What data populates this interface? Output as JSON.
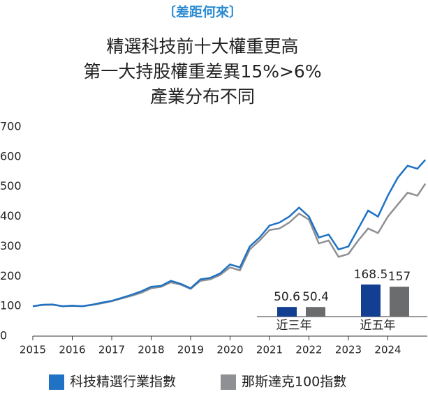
{
  "header": "〔差距何來〕",
  "chart_data": [
    {
      "type": "line",
      "title": [
        "精選科技前十大權重更高",
        "第一大持股權重差異15%>6%",
        "產業分布不同"
      ],
      "x": [
        2015,
        2015.25,
        2015.5,
        2015.75,
        2016,
        2016.25,
        2016.5,
        2016.75,
        2017,
        2017.25,
        2017.5,
        2017.75,
        2018,
        2018.25,
        2018.5,
        2018.75,
        2019,
        2019.25,
        2019.5,
        2019.75,
        2020,
        2020.25,
        2020.5,
        2020.75,
        2021,
        2021.25,
        2021.5,
        2021.75,
        2022,
        2022.25,
        2022.5,
        2022.75,
        2023,
        2023.25,
        2023.5,
        2023.75,
        2024,
        2024.25,
        2024.5,
        2024.75,
        2024.95
      ],
      "series": [
        {
          "name": "科技精選行業指數",
          "color": "#1f72c4",
          "values": [
            100,
            105,
            106,
            100,
            102,
            100,
            105,
            112,
            118,
            128,
            138,
            150,
            165,
            168,
            185,
            175,
            160,
            190,
            195,
            210,
            240,
            230,
            300,
            330,
            370,
            380,
            400,
            430,
            400,
            330,
            340,
            290,
            300,
            360,
            420,
            400,
            470,
            530,
            570,
            560,
            590
          ]
        },
        {
          "name": "那斯達克100指數",
          "color": "#8f9093",
          "values": [
            100,
            104,
            105,
            100,
            101,
            100,
            104,
            110,
            117,
            126,
            135,
            145,
            160,
            165,
            180,
            172,
            158,
            185,
            190,
            205,
            230,
            220,
            290,
            320,
            355,
            360,
            380,
            410,
            390,
            310,
            320,
            265,
            275,
            320,
            360,
            345,
            400,
            440,
            480,
            470,
            510
          ]
        }
      ],
      "xlim": [
        2015,
        2025
      ],
      "xticks": [
        2015,
        2016,
        2017,
        2018,
        2019,
        2020,
        2021,
        2022,
        2023,
        2024
      ],
      "ylim": [
        0,
        700
      ],
      "yticks": [
        0,
        100,
        200,
        300,
        400,
        500,
        600,
        700
      ]
    },
    {
      "type": "bar",
      "categories": [
        "近三年",
        "近五年"
      ],
      "series": [
        {
          "name": "科技精選行業指數",
          "color": "#123f91",
          "values": [
            50.6,
            168.5
          ]
        },
        {
          "name": "那斯達克100指數",
          "color": "#6b6c6e",
          "values": [
            50.4,
            157
          ]
        }
      ]
    }
  ]
}
